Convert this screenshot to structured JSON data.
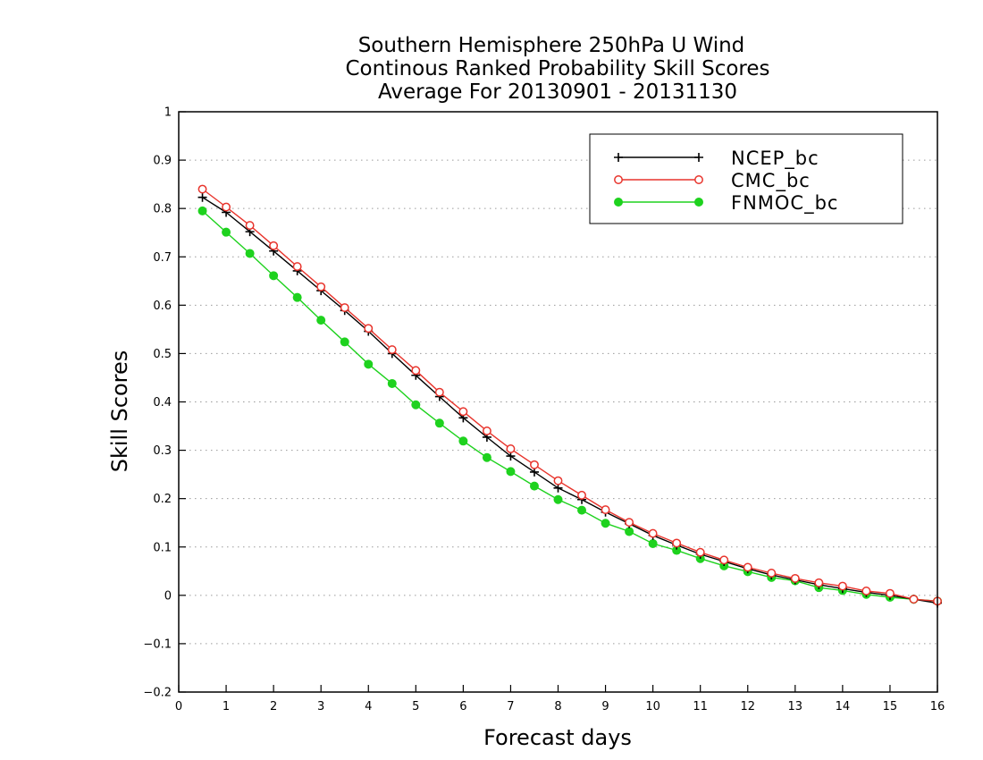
{
  "chart_data": {
    "type": "line",
    "title_lines": [
      "Southern Hemisphere 250hPa U Wind",
      "Continous Ranked Probability Skill Scores",
      "Average For 20130901 - 20131130"
    ],
    "xlabel": "Forecast days",
    "ylabel": "Skill Scores",
    "xlim": [
      0,
      16
    ],
    "ylim": [
      -0.2,
      1
    ],
    "x_ticks": [
      0,
      1,
      2,
      3,
      4,
      5,
      6,
      7,
      8,
      9,
      10,
      11,
      12,
      13,
      14,
      15,
      16
    ],
    "y_ticks": [
      -0.2,
      -0.1,
      0,
      0.1,
      0.2,
      0.3,
      0.4,
      0.5,
      0.6,
      0.7,
      0.8,
      0.9,
      1
    ],
    "y_tick_labels": [
      "−0.2",
      "−0.1",
      "0",
      "0.1",
      "0.2",
      "0.3",
      "0.4",
      "0.5",
      "0.6",
      "0.7",
      "0.8",
      "0.9",
      "1"
    ],
    "grid": "horizontal-dotted",
    "legend_position": "top-right",
    "x": [
      0.5,
      1,
      1.5,
      2,
      2.5,
      3,
      3.5,
      4,
      4.5,
      5,
      5.5,
      6,
      6.5,
      7,
      7.5,
      8,
      8.5,
      9,
      9.5,
      10,
      10.5,
      11,
      11.5,
      12,
      12.5,
      13,
      13.5,
      14,
      14.5,
      15,
      15.5,
      16
    ],
    "series": [
      {
        "name": "NCEP_bc",
        "color": "#000000",
        "marker": "plus",
        "values": [
          0.823,
          0.792,
          0.752,
          0.712,
          0.671,
          0.63,
          0.589,
          0.546,
          0.5,
          0.455,
          0.411,
          0.367,
          0.327,
          0.288,
          0.255,
          0.222,
          0.198,
          0.172,
          0.148,
          0.124,
          0.104,
          0.085,
          0.07,
          0.055,
          0.042,
          0.032,
          0.022,
          0.014,
          0.006,
          0.0,
          -0.008,
          -0.016
        ]
      },
      {
        "name": "CMC_bc",
        "color": "#e8342c",
        "marker": "open-circle",
        "values": [
          0.84,
          0.803,
          0.765,
          0.723,
          0.68,
          0.638,
          0.595,
          0.552,
          0.508,
          0.465,
          0.42,
          0.38,
          0.34,
          0.303,
          0.27,
          0.237,
          0.207,
          0.177,
          0.151,
          0.128,
          0.108,
          0.089,
          0.073,
          0.058,
          0.046,
          0.035,
          0.026,
          0.019,
          0.009,
          0.004,
          -0.008,
          -0.012
        ]
      },
      {
        "name": "FNMOC_bc",
        "color": "#1ed21e",
        "marker": "filled-circle",
        "values": [
          0.795,
          0.751,
          0.707,
          0.661,
          0.616,
          0.569,
          0.524,
          0.478,
          0.438,
          0.394,
          0.356,
          0.319,
          0.285,
          0.256,
          0.226,
          0.198,
          0.176,
          0.149,
          0.132,
          0.107,
          0.093,
          0.076,
          0.061,
          0.049,
          0.037,
          0.03,
          0.016,
          0.01,
          0.002,
          -0.004,
          -0.008,
          -0.012
        ]
      }
    ]
  }
}
